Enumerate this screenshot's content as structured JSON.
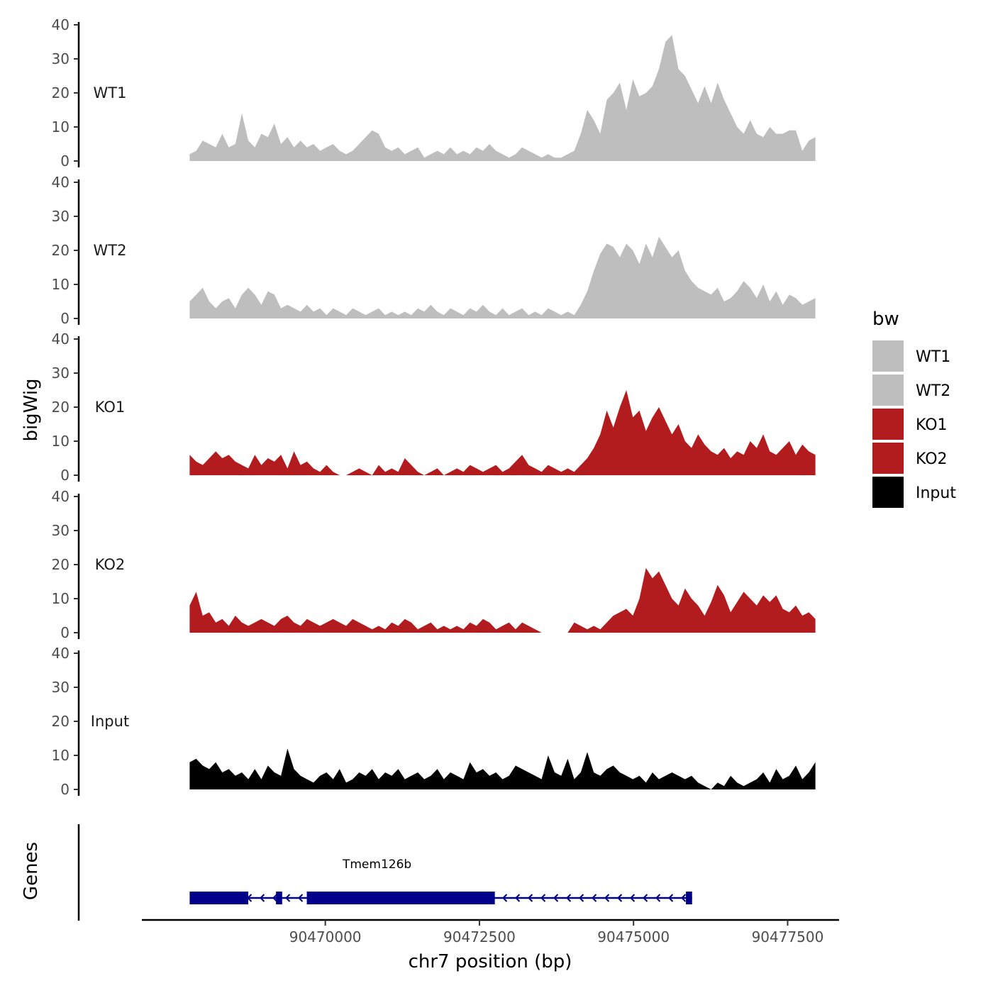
{
  "chart_data": {
    "type": "area",
    "title": "",
    "xlabel": "chr7 position (bp)",
    "ylabel": "bigWig",
    "genes_label": "Genes",
    "xlim": [
      90466000,
      90478300
    ],
    "x_ticks": [
      90470000,
      90472500,
      90475000,
      90477500
    ],
    "x_tick_labels": [
      "90470000",
      "90472500",
      "90475000",
      "90477500"
    ],
    "ylim": [
      0,
      40
    ],
    "y_ticks": [
      0,
      10,
      20,
      30,
      40
    ],
    "y_tick_labels": [
      "0",
      "10",
      "20",
      "30",
      "40"
    ],
    "legend": {
      "title": "bw",
      "position": "right",
      "entries": [
        {
          "label": "WT1",
          "color": "#bebebe"
        },
        {
          "label": "WT2",
          "color": "#bebebe"
        },
        {
          "label": "KO1",
          "color": "#b21c1f"
        },
        {
          "label": "KO2",
          "color": "#b21c1f"
        },
        {
          "label": "Input",
          "color": "#000000"
        }
      ]
    },
    "x_start": 90467800,
    "x_end": 90477950,
    "series": [
      {
        "name": "WT1",
        "color": "#bebebe",
        "values": [
          2,
          3,
          6,
          5,
          4,
          8,
          4,
          5,
          14,
          6,
          4,
          8,
          7,
          11,
          5,
          7,
          4,
          6,
          4,
          5,
          3,
          4,
          5,
          3,
          2,
          3,
          5,
          7,
          9,
          8,
          4,
          3,
          4,
          2,
          3,
          4,
          1,
          2,
          3,
          2,
          4,
          2,
          3,
          2,
          4,
          3,
          5,
          3,
          2,
          1,
          2,
          4,
          3,
          2,
          1,
          2,
          1,
          1,
          2,
          3,
          8,
          15,
          12,
          8,
          18,
          20,
          23,
          15,
          24,
          19,
          20,
          22,
          27,
          35,
          37,
          27,
          25,
          21,
          17,
          22,
          17,
          23,
          18,
          14,
          10,
          8,
          12,
          8,
          7,
          10,
          8,
          8,
          9,
          9,
          3,
          6,
          7
        ]
      },
      {
        "name": "WT2",
        "color": "#bebebe",
        "values": [
          5,
          7,
          9,
          5,
          3,
          5,
          6,
          3,
          7,
          9,
          7,
          4,
          8,
          7,
          3,
          4,
          3,
          2,
          4,
          2,
          3,
          1,
          3,
          2,
          1,
          3,
          2,
          1,
          2,
          3,
          1,
          2,
          1,
          2,
          1,
          3,
          2,
          4,
          2,
          1,
          3,
          2,
          1,
          3,
          2,
          4,
          2,
          1,
          3,
          1,
          2,
          3,
          1,
          2,
          1,
          3,
          2,
          1,
          2,
          1,
          4,
          8,
          14,
          19,
          22,
          21,
          18,
          22,
          20,
          16,
          22,
          18,
          24,
          21,
          18,
          20,
          14,
          11,
          9,
          8,
          7,
          9,
          5,
          6,
          8,
          11,
          9,
          6,
          10,
          5,
          8,
          4,
          7,
          6,
          4,
          5,
          6
        ]
      },
      {
        "name": "KO1",
        "color": "#b21c1f",
        "values": [
          6,
          4,
          3,
          5,
          7,
          5,
          6,
          4,
          3,
          2,
          6,
          3,
          5,
          4,
          6,
          2,
          7,
          3,
          4,
          2,
          1,
          3,
          1,
          0,
          0,
          1,
          2,
          1,
          0,
          3,
          1,
          2,
          1,
          5,
          3,
          1,
          0,
          1,
          2,
          0,
          1,
          2,
          1,
          3,
          2,
          1,
          2,
          3,
          1,
          2,
          4,
          6,
          3,
          2,
          1,
          3,
          2,
          1,
          2,
          1,
          3,
          5,
          8,
          12,
          19,
          14,
          20,
          25,
          17,
          19,
          13,
          17,
          20,
          16,
          12,
          15,
          10,
          8,
          12,
          9,
          7,
          6,
          8,
          5,
          7,
          6,
          10,
          8,
          12,
          7,
          6,
          8,
          10,
          6,
          9,
          7,
          6
        ]
      },
      {
        "name": "KO2",
        "color": "#b21c1f",
        "values": [
          8,
          12,
          5,
          6,
          3,
          4,
          2,
          5,
          3,
          2,
          3,
          4,
          3,
          2,
          4,
          5,
          3,
          2,
          4,
          3,
          2,
          3,
          4,
          3,
          2,
          4,
          3,
          2,
          1,
          2,
          1,
          3,
          2,
          4,
          3,
          1,
          2,
          3,
          1,
          2,
          1,
          2,
          1,
          3,
          2,
          4,
          3,
          1,
          2,
          3,
          1,
          3,
          2,
          1,
          0,
          0,
          0,
          0,
          0,
          3,
          2,
          1,
          2,
          1,
          3,
          5,
          6,
          7,
          5,
          10,
          19,
          16,
          18,
          14,
          10,
          8,
          13,
          10,
          8,
          5,
          9,
          14,
          11,
          6,
          9,
          12,
          10,
          8,
          11,
          9,
          11,
          7,
          6,
          8,
          5,
          6,
          4
        ]
      },
      {
        "name": "Input",
        "color": "#000000",
        "values": [
          8,
          9,
          7,
          6,
          8,
          5,
          6,
          4,
          5,
          3,
          6,
          3,
          7,
          5,
          4,
          12,
          6,
          4,
          3,
          2,
          4,
          5,
          3,
          6,
          2,
          3,
          5,
          4,
          6,
          3,
          5,
          4,
          6,
          3,
          4,
          5,
          3,
          4,
          6,
          3,
          5,
          4,
          3,
          8,
          5,
          6,
          4,
          5,
          3,
          4,
          7,
          6,
          5,
          4,
          3,
          10,
          5,
          4,
          9,
          3,
          5,
          11,
          5,
          4,
          6,
          7,
          5,
          4,
          3,
          4,
          2,
          5,
          3,
          4,
          5,
          4,
          3,
          4,
          2,
          1,
          0,
          2,
          1,
          4,
          2,
          1,
          2,
          3,
          5,
          2,
          6,
          3,
          4,
          7,
          3,
          5,
          8
        ]
      }
    ],
    "genes": [
      {
        "name": "Tmem126b",
        "strand": "-",
        "start": 90467800,
        "end": 90475950,
        "exons": [
          [
            90467800,
            90468750
          ],
          [
            90469200,
            90469300
          ],
          [
            90469700,
            90472750
          ],
          [
            90475850,
            90475950
          ]
        ]
      }
    ]
  }
}
